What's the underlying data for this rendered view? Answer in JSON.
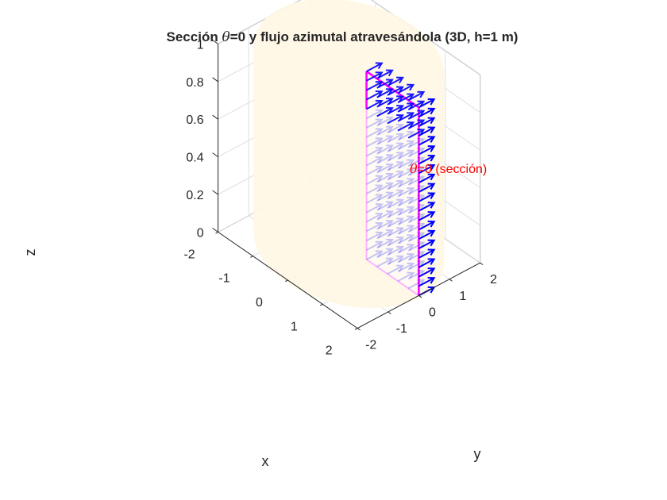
{
  "chart_data": {
    "type": "3d-quiver",
    "title": {
      "prefix": "Sección ",
      "symbol": "θ",
      "suffix": "=0 y flujo azimutal atravesándola (3D, h=1 m)"
    },
    "xlabel": "x",
    "ylabel": "y",
    "zlabel": "z",
    "xlim": [
      -2,
      2
    ],
    "ylim": [
      -2,
      2
    ],
    "zlim": [
      0,
      1
    ],
    "xticks": [
      "-2",
      "-1",
      "0",
      "1",
      "2"
    ],
    "yticks": [
      "-2",
      "-1",
      "0",
      "1",
      "2"
    ],
    "zticks": [
      "0",
      "0.2",
      "0.4",
      "0.6",
      "0.8",
      "1"
    ],
    "grid": true,
    "cylinder": {
      "radius": 2,
      "height": 1,
      "color": "#fff8e6"
    },
    "section": {
      "label_symbol": "θ",
      "label_text": "=0 (sección)",
      "label_color": "#ff0000",
      "edge_color": "#ff00ff",
      "r_range": [
        0.5,
        2
      ],
      "z_range": [
        0,
        1
      ]
    },
    "flux": {
      "color": "#0000ff",
      "direction": "azimuthal",
      "arrow_length": 0.5,
      "r_values": [
        0.5,
        0.8,
        1.1,
        1.4,
        1.7,
        2.0
      ],
      "z_values": [
        0,
        0.05,
        0.1,
        0.15,
        0.2,
        0.25,
        0.3,
        0.35,
        0.4,
        0.45,
        0.5,
        0.55,
        0.6,
        0.65,
        0.7,
        0.75,
        0.8,
        0.85,
        0.9,
        0.95,
        1.0
      ]
    }
  }
}
